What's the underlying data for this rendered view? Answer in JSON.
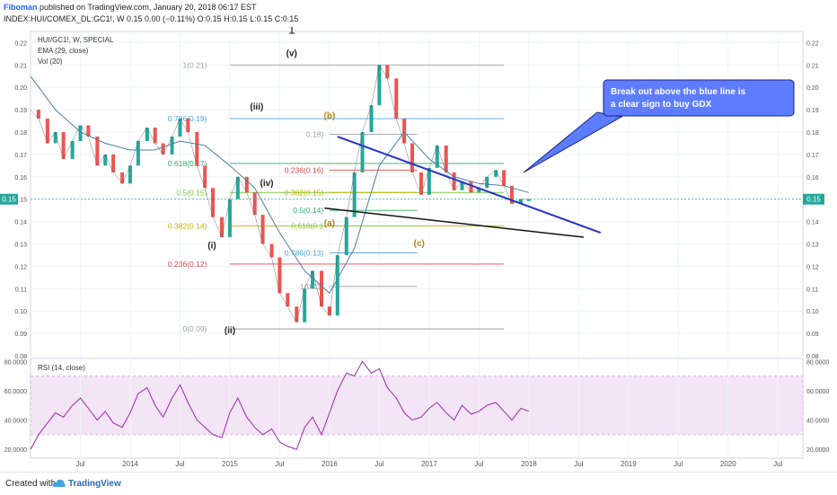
{
  "header": {
    "author": "Fiboman",
    "published": "published on TradingView.com, January 20, 2018 06:17 EST",
    "symbol_line": "INDEX:HUI/COMEX_DL:GC1!, W  0.15 0.00 (−0.11%) O:0.15 H:0.15 L:0.15 C:0.15"
  },
  "legend": {
    "symbol": "HUI/GC1!, W, SPECIAL",
    "ema": "EMA (29, close)",
    "vol": "Vol (20)",
    "rsi": "RSI (14, close)"
  },
  "footer": {
    "created_with": "Created with",
    "brand": "TradingView"
  },
  "price_badge": "0.15",
  "chart_data": {
    "type": "line",
    "title": "HUI/GC1!, W, SPECIAL",
    "price_axis": {
      "ylim": [
        0.08,
        0.225
      ],
      "ticks": [
        "0.22",
        "0.21",
        "0.20",
        "0.19",
        "0.18",
        "0.17",
        "0.16",
        "0.15",
        "0.14",
        "0.13",
        "0.12",
        "0.11",
        "0.10",
        "0.09",
        "0.08"
      ]
    },
    "rsi_axis": {
      "ylim": [
        14,
        82
      ],
      "ticks": [
        "80.0000",
        "60.0000",
        "40.0000",
        "20.0000"
      ],
      "band": [
        30,
        70
      ]
    },
    "x_ticks": [
      "Jul",
      "2014",
      "Jul",
      "2015",
      "Jul",
      "2016",
      "Jul",
      "2017",
      "Jul",
      "2018",
      "Jul",
      "2019",
      "Jul",
      "2020",
      "Jul"
    ],
    "price_series": {
      "name": "HUI/GC1!",
      "x": [
        2013.0,
        2013.08,
        2013.17,
        2013.25,
        2013.33,
        2013.42,
        2013.5,
        2013.58,
        2013.67,
        2013.75,
        2013.83,
        2013.92,
        2014.0,
        2014.08,
        2014.17,
        2014.25,
        2014.33,
        2014.42,
        2014.5,
        2014.58,
        2014.67,
        2014.75,
        2014.83,
        2014.92,
        2015.0,
        2015.08,
        2015.17,
        2015.25,
        2015.33,
        2015.42,
        2015.5,
        2015.58,
        2015.67,
        2015.75,
        2015.83,
        2015.92,
        2016.0,
        2016.08,
        2016.17,
        2016.25,
        2016.33,
        2016.42,
        2016.5,
        2016.58,
        2016.67,
        2016.75,
        2016.83,
        2016.92,
        2017.0,
        2017.08,
        2017.17,
        2017.25,
        2017.33,
        2017.42,
        2017.5,
        2017.58,
        2017.67,
        2017.75,
        2017.83,
        2017.92,
        2018.0
      ],
      "values": [
        0.19,
        0.186,
        0.175,
        0.18,
        0.168,
        0.176,
        0.183,
        0.178,
        0.165,
        0.17,
        0.162,
        0.157,
        0.165,
        0.176,
        0.182,
        0.175,
        0.17,
        0.178,
        0.186,
        0.18,
        0.165,
        0.155,
        0.142,
        0.133,
        0.15,
        0.16,
        0.153,
        0.143,
        0.13,
        0.124,
        0.108,
        0.102,
        0.095,
        0.11,
        0.118,
        0.102,
        0.098,
        0.125,
        0.142,
        0.162,
        0.18,
        0.192,
        0.21,
        0.204,
        0.186,
        0.175,
        0.162,
        0.152,
        0.164,
        0.174,
        0.162,
        0.154,
        0.158,
        0.153,
        0.155,
        0.16,
        0.163,
        0.156,
        0.148,
        0.15,
        0.15
      ]
    },
    "ema_series": {
      "name": "EMA (29, close)",
      "x": [
        2013.0,
        2013.25,
        2013.5,
        2013.75,
        2014.0,
        2014.25,
        2014.5,
        2014.75,
        2015.0,
        2015.25,
        2015.5,
        2015.75,
        2016.0,
        2016.25,
        2016.5,
        2016.75,
        2017.0,
        2017.25,
        2017.5,
        2017.75,
        2018.0
      ],
      "values": [
        0.205,
        0.19,
        0.18,
        0.175,
        0.172,
        0.172,
        0.176,
        0.174,
        0.165,
        0.155,
        0.135,
        0.118,
        0.108,
        0.128,
        0.165,
        0.18,
        0.168,
        0.16,
        0.157,
        0.156,
        0.153
      ]
    },
    "rsi_series": {
      "name": "RSI (14, close)",
      "x": [
        2013.0,
        2013.08,
        2013.17,
        2013.25,
        2013.33,
        2013.42,
        2013.5,
        2013.58,
        2013.67,
        2013.75,
        2013.83,
        2013.92,
        2014.0,
        2014.08,
        2014.17,
        2014.25,
        2014.33,
        2014.42,
        2014.5,
        2014.58,
        2014.67,
        2014.75,
        2014.83,
        2014.92,
        2015.0,
        2015.08,
        2015.17,
        2015.25,
        2015.33,
        2015.42,
        2015.5,
        2015.58,
        2015.67,
        2015.75,
        2015.83,
        2015.92,
        2016.0,
        2016.08,
        2016.17,
        2016.25,
        2016.33,
        2016.42,
        2016.5,
        2016.58,
        2016.67,
        2016.75,
        2016.83,
        2016.92,
        2017.0,
        2017.08,
        2017.17,
        2017.25,
        2017.33,
        2017.42,
        2017.5,
        2017.58,
        2017.67,
        2017.75,
        2017.83,
        2017.92,
        2018.0
      ],
      "values": [
        20,
        30,
        38,
        45,
        42,
        50,
        55,
        48,
        40,
        46,
        38,
        35,
        45,
        58,
        62,
        50,
        42,
        55,
        64,
        52,
        40,
        35,
        30,
        28,
        45,
        55,
        42,
        35,
        30,
        34,
        25,
        22,
        20,
        35,
        42,
        30,
        45,
        60,
        72,
        70,
        80,
        72,
        75,
        62,
        55,
        45,
        40,
        42,
        48,
        52,
        45,
        40,
        50,
        44,
        46,
        50,
        52,
        46,
        40,
        48,
        46
      ]
    },
    "fib_levels": [
      {
        "label": "1(0.21)",
        "value": 0.21,
        "color": "#9e9e9e"
      },
      {
        "label": "0.786(0.19)",
        "value": 0.186,
        "color": "#4aa3df"
      },
      {
        "label": "0.618(0.17)",
        "value": 0.166,
        "color": "#27ae60"
      },
      {
        "label": "0.5(0.15)",
        "value": 0.153,
        "color": "#7ac943"
      },
      {
        "label": "0.382(0.14)",
        "value": 0.138,
        "color": "#c0b300"
      },
      {
        "label": "0.236(0.12)",
        "value": 0.121,
        "color": "#e04444"
      },
      {
        "label": "0(0.09)",
        "value": 0.092,
        "color": "#9e9e9e"
      }
    ],
    "fib_levels_2": [
      {
        "label": "0.18)",
        "value": 0.179,
        "color": "#9e9e9e"
      },
      {
        "label": "0.236(0.16)",
        "value": 0.163,
        "color": "#e04444"
      },
      {
        "label": "0.382(0.15)",
        "value": 0.153,
        "color": "#c0b300"
      },
      {
        "label": "0.5(0.14)",
        "value": 0.145,
        "color": "#27ae60"
      },
      {
        "label": "0.618(0.1",
        "value": 0.138,
        "color": "#7ac943"
      },
      {
        "label": "0.786(0.13)",
        "value": 0.126,
        "color": "#4aa3df"
      },
      {
        "label": "1(0.11)",
        "value": 0.111,
        "color": "#9e9e9e"
      }
    ],
    "wave_labels": [
      {
        "text": "1",
        "x": 2015.62,
        "y": 0.224,
        "color": "#222"
      },
      {
        "text": "(v)",
        "x": 2015.62,
        "y": 0.214,
        "color": "#222"
      },
      {
        "text": "(iii)",
        "x": 2015.27,
        "y": 0.19,
        "color": "#222"
      },
      {
        "text": "(iv)",
        "x": 2015.37,
        "y": 0.156,
        "color": "#222"
      },
      {
        "text": "(i)",
        "x": 2014.82,
        "y": 0.128,
        "color": "#222"
      },
      {
        "text": "(ii)",
        "x": 2015.0,
        "y": 0.09,
        "color": "#222"
      },
      {
        "text": "(b)",
        "x": 2016.0,
        "y": 0.186,
        "color": "#b8860b"
      },
      {
        "text": "(a)",
        "x": 2016.0,
        "y": 0.138,
        "color": "#b8860b"
      },
      {
        "text": "(c)",
        "x": 2016.9,
        "y": 0.129,
        "color": "#b8860b"
      }
    ],
    "callout": "Break out above the blue line is a clear sign to buy GDX",
    "trendlines": {
      "upper_color": "#2233cc",
      "lower_color": "#111111"
    }
  },
  "colors": {
    "up": "#26a69a",
    "down": "#ef5350",
    "ema": "#4a7fa6",
    "rsi": "#9c27b0",
    "rsi_band": "#f3e5f5",
    "callout_bg": "#5e7cff",
    "callout_border": "#1a237e",
    "price_badge_bg": "#26a69a"
  }
}
